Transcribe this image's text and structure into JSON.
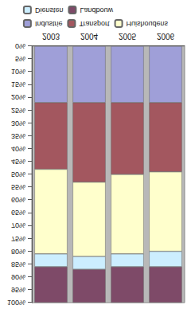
{
  "chart_data": {
    "type": "bar",
    "stacked": true,
    "grid": false,
    "legend": "bottom",
    "categories": [
      "2003",
      "2004",
      "2005",
      "2006"
    ],
    "series": [
      {
        "name": "Industrie",
        "color": "#9f9fd8",
        "values": [
          22,
          22,
          22,
          22
        ]
      },
      {
        "name": "Transport",
        "color": "#a3575f",
        "values": [
          26,
          31,
          28,
          27
        ]
      },
      {
        "name": "Huishoudens",
        "color": "#ffffcc",
        "values": [
          33,
          29,
          31,
          31
        ]
      },
      {
        "name": "Diensten",
        "color": "#cceeff",
        "values": [
          5,
          5,
          5,
          6
        ]
      },
      {
        "name": "Landbouw",
        "color": "#7e4a68",
        "values": [
          14,
          13,
          14,
          14
        ]
      }
    ],
    "ylim": [
      0,
      100
    ],
    "yticks": [
      {
        "value": 0,
        "label": "0%"
      },
      {
        "value": 5,
        "label": "5%"
      },
      {
        "value": 10,
        "label": "10%"
      },
      {
        "value": 15,
        "label": "15%"
      },
      {
        "value": 20,
        "label": "20%"
      },
      {
        "value": 25,
        "label": "25%"
      },
      {
        "value": 30,
        "label": "30%"
      },
      {
        "value": 35,
        "label": "35%"
      },
      {
        "value": 40,
        "label": "40%"
      },
      {
        "value": 45,
        "label": "45%"
      },
      {
        "value": 50,
        "label": "50%"
      },
      {
        "value": 55,
        "label": "55%"
      },
      {
        "value": 60,
        "label": "60%"
      },
      {
        "value": 65,
        "label": "65%"
      },
      {
        "value": 70,
        "label": "70%"
      },
      {
        "value": 75,
        "label": "75%"
      },
      {
        "value": 80,
        "label": "80%"
      },
      {
        "value": 85,
        "label": "85%"
      },
      {
        "value": 90,
        "label": "90%"
      },
      {
        "value": 95,
        "label": "95%"
      },
      {
        "value": 100,
        "label": "100%"
      }
    ]
  }
}
